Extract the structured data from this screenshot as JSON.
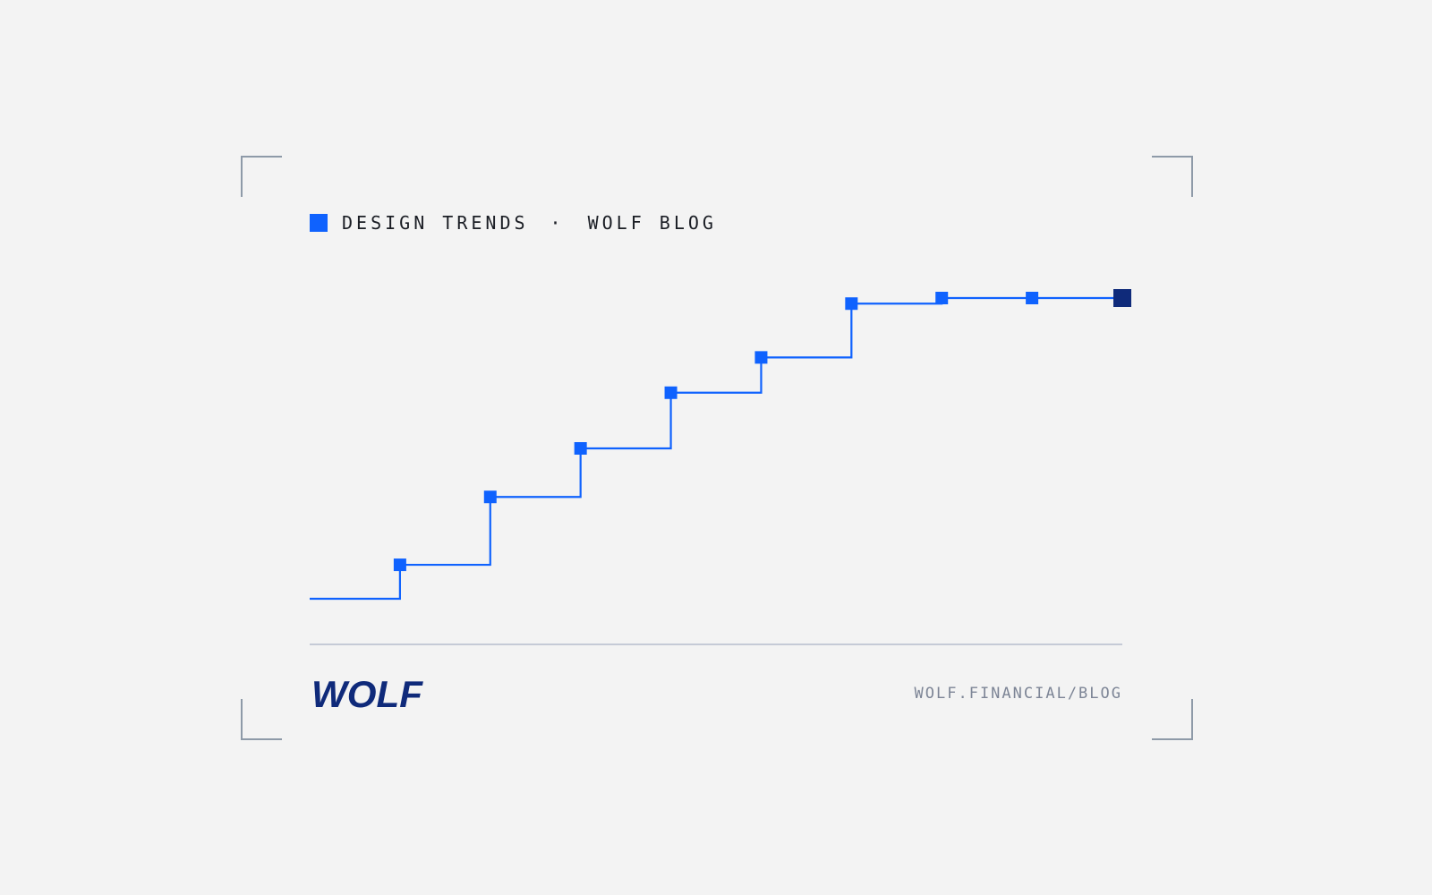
{
  "header": {
    "category": "DESIGN TRENDS",
    "separator": "·",
    "blog": "WOLF BLOG"
  },
  "logo": {
    "text": "WOLF"
  },
  "footer": {
    "url": "WOLF.FINANCIAL/BLOG"
  },
  "colors": {
    "background": "#f3f3f3",
    "accent": "#0f62fe",
    "navy": "#0f2a7a",
    "frame": "#8e9aa8",
    "rule": "#c5cad6",
    "url": "#7d8596"
  },
  "chart_data": {
    "type": "line",
    "step": true,
    "x": [
      0,
      1,
      2,
      3,
      4,
      5,
      6,
      7,
      8,
      9
    ],
    "values": [
      0.0,
      0.128,
      0.384,
      0.567,
      0.777,
      0.91,
      1.113,
      1.134,
      1.134,
      1.134
    ],
    "ylim": [
      0,
      1.134
    ],
    "grid": false,
    "last_point_highlighted": true
  }
}
